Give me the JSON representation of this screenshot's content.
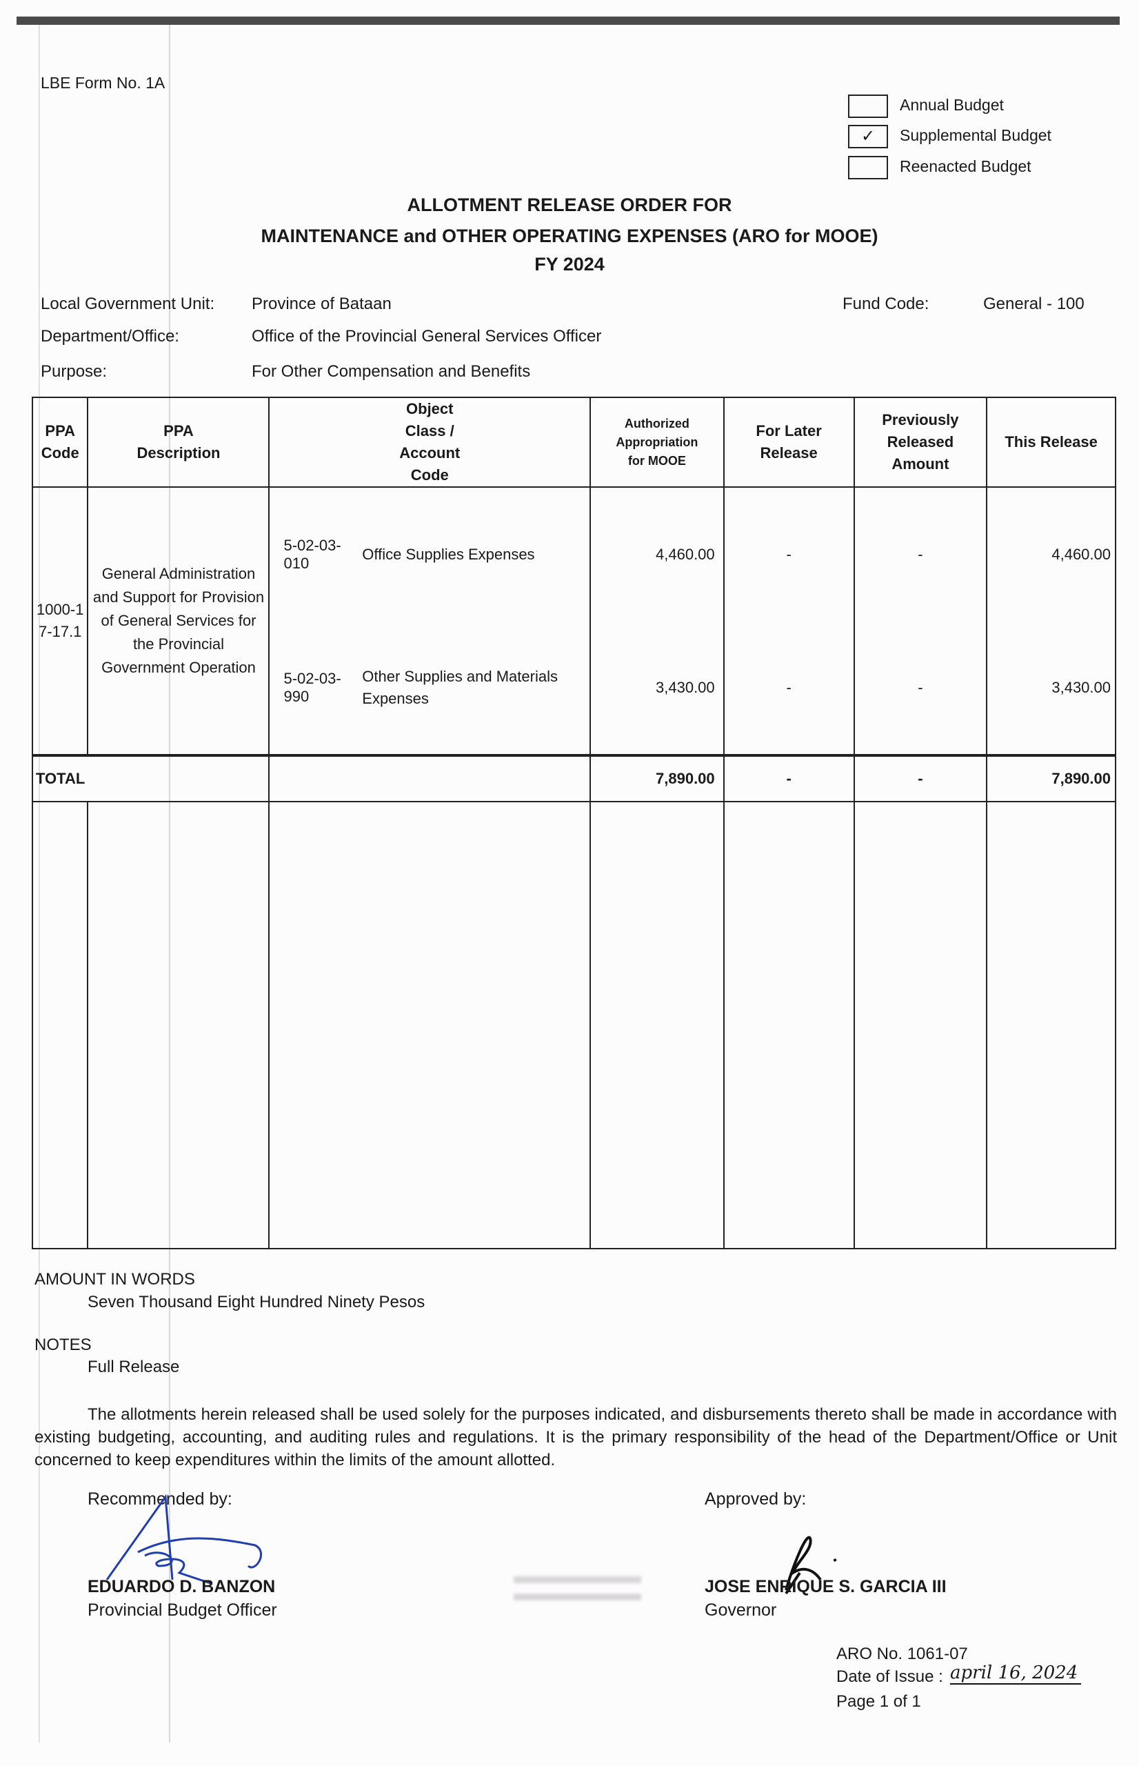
{
  "form_no": "LBE Form No. 1A",
  "budget_types": [
    {
      "label": "Annual Budget",
      "checked": false
    },
    {
      "label": "Supplemental Budget",
      "checked": true
    },
    {
      "label": "Reenacted Budget",
      "checked": false
    }
  ],
  "check_mark": "✓",
  "title": {
    "line1": "ALLOTMENT RELEASE ORDER FOR",
    "line2": "MAINTENANCE and OTHER OPERATING EXPENSES (ARO for MOOE)",
    "line3": "FY 2024"
  },
  "info": {
    "lgu_label": "Local Government Unit:",
    "lgu_value": "Province of Bataan",
    "dept_label": "Department/Office:",
    "dept_value": "Office of the Provincial General Services Officer",
    "purpose_label": "Purpose:",
    "purpose_value": "For Other Compensation and Benefits",
    "fund_label": "Fund Code:",
    "fund_value": "General - 100"
  },
  "table": {
    "headers": {
      "ppa_code": "PPA Code",
      "ppa_desc": "PPA Description",
      "object_class": "Object Class / Account Code",
      "authorized": "Authorized Appropriation for MOOE",
      "later": "For Later Release",
      "previous": "Previously Released Amount",
      "this": "This Release"
    },
    "ppa_code": "1000-17-17.1",
    "ppa_desc": "General Administration and Support for Provision of General Services for the Provincial Government Operation",
    "rows": [
      {
        "code": "5-02-03-010",
        "name": "Office Supplies Expenses",
        "authorized": "4,460.00",
        "later": "-",
        "previous": "-",
        "this": "4,460.00"
      },
      {
        "code": "5-02-03-990",
        "name": "Other Supplies and Materials Expenses",
        "authorized": "3,430.00",
        "later": "-",
        "previous": "-",
        "this": "3,430.00"
      }
    ],
    "total": {
      "label": "TOTAL",
      "authorized": "7,890.00",
      "later": "-",
      "previous": "-",
      "this": "7,890.00"
    }
  },
  "amount_in_words_label": "AMOUNT IN WORDS",
  "amount_in_words": "Seven Thousand Eight Hundred Ninety Pesos",
  "notes_label": "NOTES",
  "notes": "Full Release",
  "paragraph": "The allotments herein released shall be used solely for the purposes indicated, and disbursements thereto shall be made in accordance with existing budgeting, accounting, and auditing rules and regulations. It is the primary responsibility of the head of the Department/Office or Unit concerned to keep expenditures within the limits of the amount allotted.",
  "recommended": {
    "label": "Recommended by:",
    "name": "EDUARDO D. BANZON",
    "position": "Provincial Budget Officer"
  },
  "approved": {
    "label": "Approved by:",
    "name": "JOSE ENRIQUE S. GARCIA III",
    "position": "Governor"
  },
  "footer": {
    "aro_no": "ARO No. 1061-07",
    "date_label": "Date of Issue :",
    "date_value": "april 16, 2024",
    "page": "Page 1 of 1"
  }
}
